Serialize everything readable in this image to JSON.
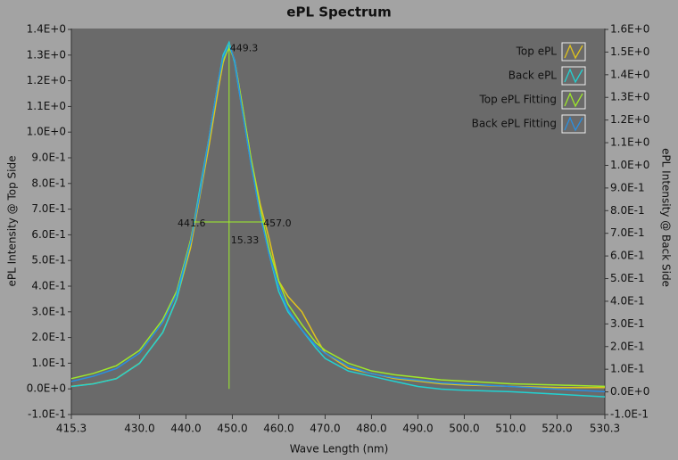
{
  "chart_data": {
    "type": "line",
    "title": "ePL Spectrum",
    "x_label": "Wave Length (nm)",
    "y_label": "ePL Intensity @ Top Side",
    "y2_label": "ePL Intensity @ Back Side",
    "x": [
      415.3,
      420,
      425,
      430,
      435,
      438,
      441,
      443,
      445,
      447,
      448,
      449.3,
      450.5,
      452,
      454,
      456,
      458,
      460,
      462,
      465,
      468,
      470,
      475,
      480,
      485,
      490,
      495,
      500,
      510,
      520,
      530.3
    ],
    "series": [
      {
        "name": "Top ePL",
        "color": "#e0c41c",
        "axis": "y",
        "values": [
          0.01,
          0.02,
          0.04,
          0.1,
          0.22,
          0.35,
          0.55,
          0.75,
          0.95,
          1.17,
          1.27,
          1.34,
          1.28,
          1.12,
          0.9,
          0.72,
          0.58,
          0.42,
          0.36,
          0.3,
          0.2,
          0.14,
          0.08,
          0.06,
          0.04,
          0.03,
          0.02,
          0.015,
          0.01,
          0.005,
          0.005
        ]
      },
      {
        "name": "Back ePL",
        "color": "#22d2d2",
        "axis": "y2",
        "values": [
          0.024,
          0.035,
          0.058,
          0.126,
          0.262,
          0.409,
          0.659,
          0.897,
          1.124,
          1.373,
          1.487,
          1.543,
          1.453,
          1.26,
          1.01,
          0.784,
          0.602,
          0.443,
          0.353,
          0.273,
          0.194,
          0.148,
          0.092,
          0.069,
          0.046,
          0.024,
          0.012,
          0.007,
          0.001,
          -0.01,
          -0.022
        ]
      },
      {
        "name": "Top ePL Fitting",
        "color": "#9ee82a",
        "axis": "y",
        "values": [
          0.04,
          0.06,
          0.09,
          0.15,
          0.27,
          0.38,
          0.58,
          0.76,
          0.98,
          1.2,
          1.28,
          1.33,
          1.28,
          1.12,
          0.9,
          0.7,
          0.54,
          0.42,
          0.33,
          0.25,
          0.18,
          0.15,
          0.1,
          0.07,
          0.055,
          0.045,
          0.035,
          0.03,
          0.02,
          0.015,
          0.01
        ]
      },
      {
        "name": "Back ePL Fitting",
        "color": "#2a8fe0",
        "axis": "y2",
        "values": [
          0.046,
          0.069,
          0.103,
          0.171,
          0.307,
          0.432,
          0.659,
          0.874,
          1.124,
          1.373,
          1.475,
          1.532,
          1.464,
          1.26,
          1.01,
          0.784,
          0.602,
          0.466,
          0.364,
          0.273,
          0.205,
          0.171,
          0.114,
          0.08,
          0.063,
          0.052,
          0.04,
          0.035,
          0.024,
          0.012,
          0.001
        ]
      }
    ],
    "xlim": [
      415.3,
      530.3
    ],
    "xticks": [
      415.3,
      {
        "value": 430,
        "label": "430.0"
      },
      {
        "value": 440,
        "label": "440.0"
      },
      {
        "value": 450,
        "label": "450.0"
      },
      {
        "value": 460,
        "label": "460.0"
      },
      {
        "value": 470,
        "label": "470.0"
      },
      {
        "value": 480,
        "label": "480.0"
      },
      {
        "value": 490,
        "label": "490.0"
      },
      {
        "value": 500,
        "label": "500.0"
      },
      {
        "value": 510,
        "label": "510.0"
      },
      {
        "value": 520,
        "label": "520.0"
      },
      530.3
    ],
    "ylim": [
      -0.1,
      1.4
    ],
    "yticks": [
      {
        "value": -0.1,
        "label": "-1.0E-1"
      },
      {
        "value": 0,
        "label": "0.0E+0"
      },
      {
        "value": 0.1,
        "label": "1.0E-1"
      },
      {
        "value": 0.2,
        "label": "2.0E-1"
      },
      {
        "value": 0.3,
        "label": "3.0E-1"
      },
      {
        "value": 0.4,
        "label": "4.0E-1"
      },
      {
        "value": 0.5,
        "label": "5.0E-1"
      },
      {
        "value": 0.6,
        "label": "6.0E-1"
      },
      {
        "value": 0.7,
        "label": "7.0E-1"
      },
      {
        "value": 0.8,
        "label": "8.0E-1"
      },
      {
        "value": 0.9,
        "label": "9.0E-1"
      },
      {
        "value": 1.0,
        "label": "1.0E+0"
      },
      {
        "value": 1.1,
        "label": "1.1E+0"
      },
      {
        "value": 1.2,
        "label": "1.2E+0"
      },
      {
        "value": 1.3,
        "label": "1.3E+0"
      },
      {
        "value": 1.4,
        "label": "1.4E+0"
      }
    ],
    "y2lim": [
      -0.1,
      1.6
    ],
    "y2ticks": [
      {
        "value": -0.1,
        "label": "-1.0E-1"
      },
      {
        "value": 0,
        "label": "0.0E+0"
      },
      {
        "value": 0.1,
        "label": "1.0E-1"
      },
      {
        "value": 0.2,
        "label": "2.0E-1"
      },
      {
        "value": 0.3,
        "label": "3.0E-1"
      },
      {
        "value": 0.4,
        "label": "4.0E-1"
      },
      {
        "value": 0.5,
        "label": "5.0E-1"
      },
      {
        "value": 0.6,
        "label": "6.0E-1"
      },
      {
        "value": 0.7,
        "label": "7.0E-1"
      },
      {
        "value": 0.8,
        "label": "8.0E-1"
      },
      {
        "value": 0.9,
        "label": "9.0E-1"
      },
      {
        "value": 1.0,
        "label": "1.0E+0"
      },
      {
        "value": 1.1,
        "label": "1.1E+0"
      },
      {
        "value": 1.2,
        "label": "1.2E+0"
      },
      {
        "value": 1.3,
        "label": "1.3E+0"
      },
      {
        "value": 1.4,
        "label": "1.4E+0"
      },
      {
        "value": 1.5,
        "label": "1.5E+0"
      },
      {
        "value": 1.6,
        "label": "1.6E+0"
      }
    ],
    "grid": false,
    "legend": "top-right",
    "annotation_color": "#9ef02a",
    "peak": {
      "x": 449.3,
      "y": 1.34
    },
    "fwhm": {
      "start": 441.6,
      "end": {
        "value": 457,
        "label": "457.0"
      },
      "y": 0.65,
      "width": 15.33
    }
  }
}
